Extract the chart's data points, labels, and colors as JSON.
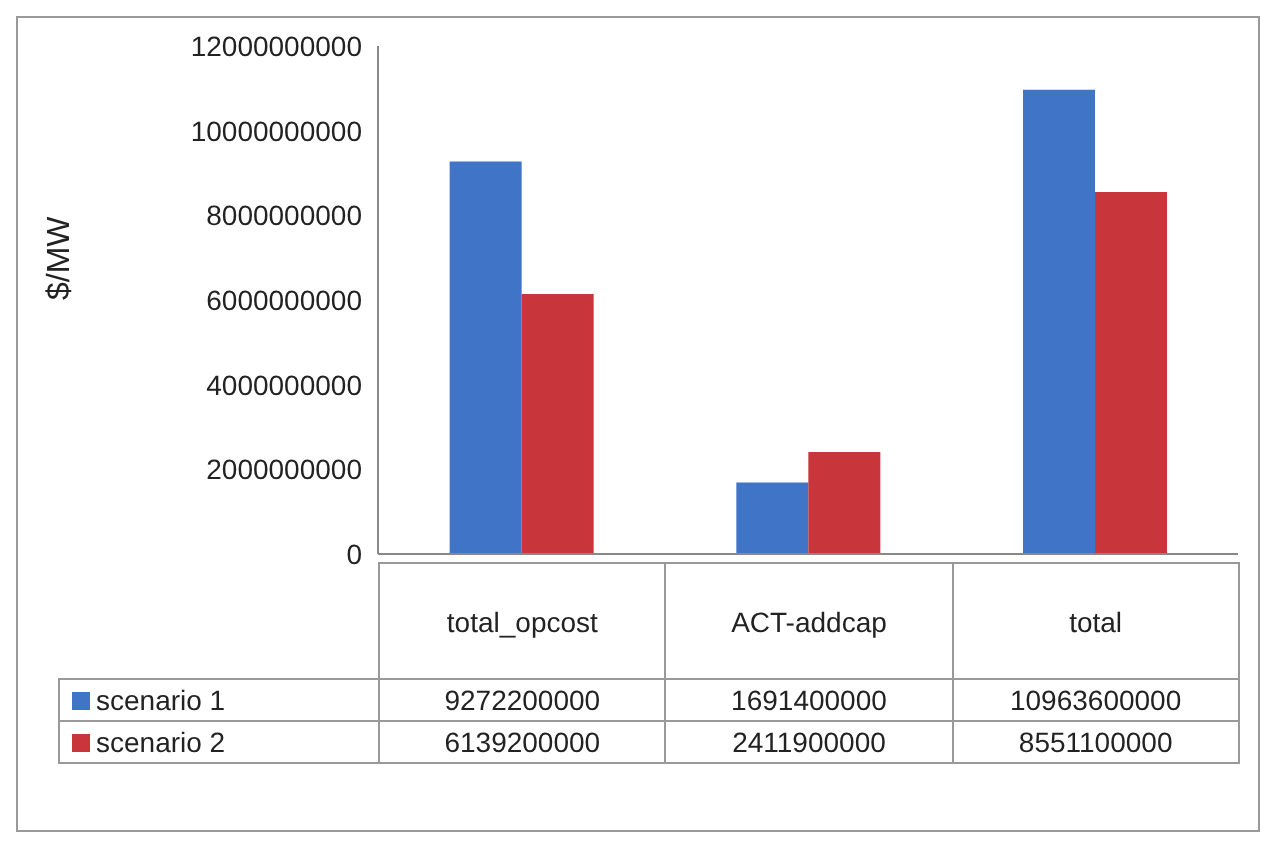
{
  "chart_data": {
    "type": "bar",
    "ylabel": "$/MW",
    "categories": [
      "total_opcost",
      "ACT-addcap",
      "total"
    ],
    "series": [
      {
        "name": "scenario 1",
        "color": "#3f74c6",
        "values": [
          9272200000,
          1691400000,
          10963600000
        ]
      },
      {
        "name": "scenario 2",
        "color": "#c8353a",
        "values": [
          6139200000,
          2411900000,
          8551100000
        ]
      }
    ],
    "ylim": [
      0,
      12000000000
    ],
    "yticks": [
      0,
      2000000000,
      4000000000,
      6000000000,
      8000000000,
      10000000000,
      12000000000
    ],
    "legend": "bottom",
    "data_labels": true
  }
}
